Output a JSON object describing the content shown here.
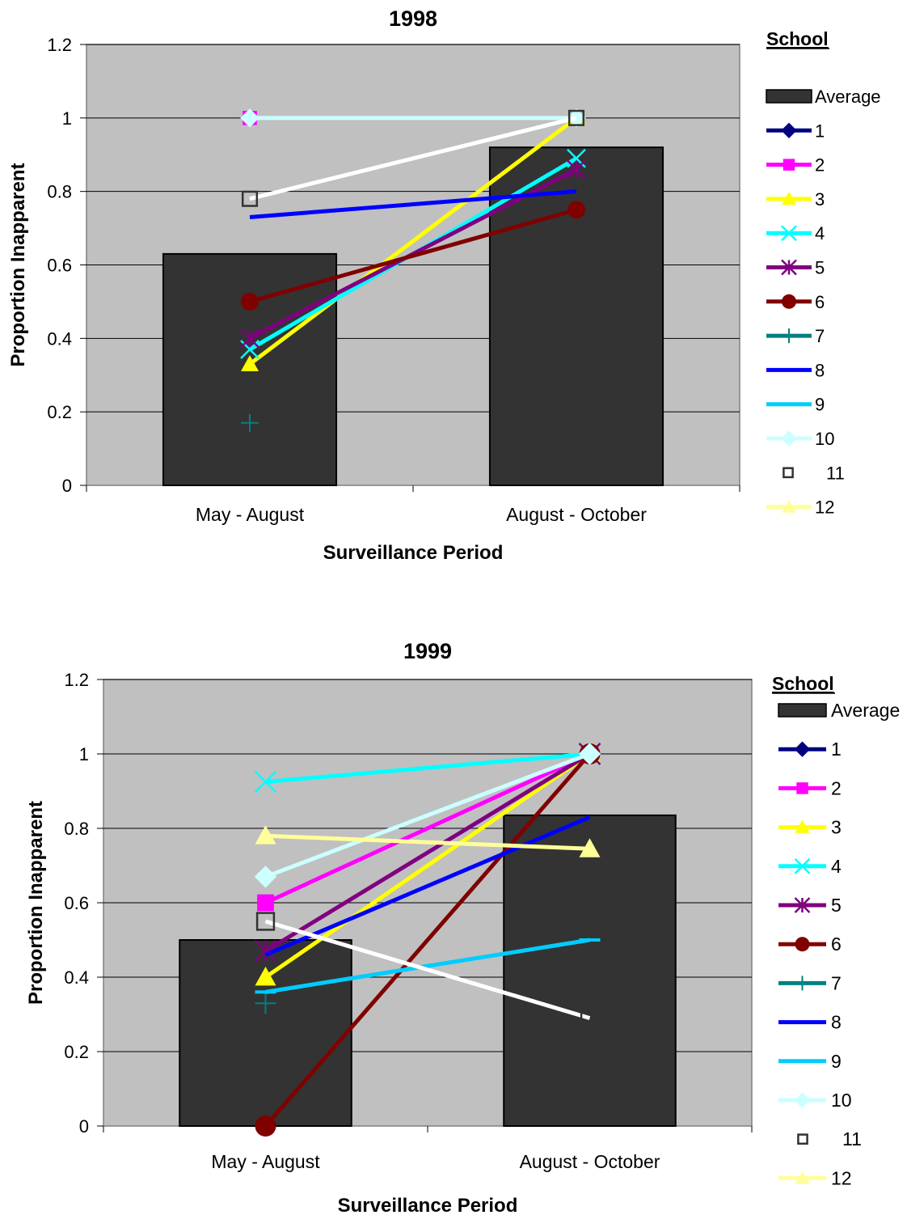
{
  "legend_heading": "School",
  "chart_data": [
    {
      "type": "bar",
      "title": "1998",
      "xlabel": "Surveillance Period",
      "ylabel": "Proportion Inapparent",
      "ylim": [
        0,
        1.2
      ],
      "yticks": [
        "0",
        "0.2",
        "0.4",
        "0.6",
        "0.8",
        "1",
        "1.2"
      ],
      "categories": [
        "May - August",
        "August - October"
      ],
      "grid": true,
      "legend_position": "right",
      "bar_series": {
        "name": "Average",
        "values": [
          0.63,
          0.92
        ],
        "color": "#333333"
      },
      "series": [
        {
          "name": "1",
          "values": [
            null,
            null
          ],
          "color": "#000080",
          "marker": "diamond"
        },
        {
          "name": "2",
          "values": [
            1.0,
            null
          ],
          "color": "#ff00ff",
          "marker": "square"
        },
        {
          "name": "3",
          "values": [
            0.33,
            1.0
          ],
          "color": "#ffff00",
          "marker": "triangle"
        },
        {
          "name": "4",
          "values": [
            0.37,
            0.89
          ],
          "color": "#00ffff",
          "marker": "x"
        },
        {
          "name": "5",
          "values": [
            0.4,
            0.86
          ],
          "color": "#800080",
          "marker": "star"
        },
        {
          "name": "6",
          "values": [
            0.5,
            0.75
          ],
          "color": "#800000",
          "marker": "circle"
        },
        {
          "name": "7",
          "values": [
            0.17,
            null
          ],
          "color": "#008080",
          "marker": "plus"
        },
        {
          "name": "8",
          "values": [
            0.73,
            0.8
          ],
          "color": "#0000ff",
          "marker": "none"
        },
        {
          "name": "9",
          "values": [
            null,
            null
          ],
          "color": "#00ccff",
          "marker": "dash"
        },
        {
          "name": "10",
          "values": [
            1.0,
            1.0
          ],
          "color": "#ccffff",
          "marker": "diamond"
        },
        {
          "name": "11",
          "values": [
            0.78,
            1.0
          ],
          "color": "#ffffff",
          "marker": "hollow-square"
        },
        {
          "name": "12",
          "values": [
            null,
            null
          ],
          "color": "#ffff99",
          "marker": "triangle"
        }
      ]
    },
    {
      "type": "bar",
      "title": "1999",
      "xlabel": "Surveillance Period",
      "ylabel": "Proportion Inapparent",
      "ylim": [
        0,
        1.2
      ],
      "yticks": [
        "0",
        "0.2",
        "0.4",
        "0.6",
        "0.8",
        "1",
        "1.2"
      ],
      "categories": [
        "May - August",
        "August - October"
      ],
      "grid": true,
      "legend_position": "right",
      "bar_series": {
        "name": "Average",
        "values": [
          0.5,
          0.835
        ],
        "color": "#333333"
      },
      "series": [
        {
          "name": "1",
          "values": [
            null,
            1.0
          ],
          "color": "#000080",
          "marker": "diamond"
        },
        {
          "name": "2",
          "values": [
            0.6,
            1.0
          ],
          "color": "#ff00ff",
          "marker": "square"
        },
        {
          "name": "3",
          "values": [
            0.4,
            1.0
          ],
          "color": "#ffff00",
          "marker": "triangle"
        },
        {
          "name": "4",
          "values": [
            0.925,
            1.0
          ],
          "color": "#00ffff",
          "marker": "x"
        },
        {
          "name": "5",
          "values": [
            0.47,
            1.0
          ],
          "color": "#800080",
          "marker": "star"
        },
        {
          "name": "6",
          "values": [
            0.0,
            1.0
          ],
          "color": "#800000",
          "marker": "circle"
        },
        {
          "name": "7",
          "values": [
            0.33,
            null
          ],
          "color": "#008080",
          "marker": "plus"
        },
        {
          "name": "8",
          "values": [
            0.46,
            0.83
          ],
          "color": "#0000ff",
          "marker": "none"
        },
        {
          "name": "9",
          "values": [
            0.36,
            0.5
          ],
          "color": "#00ccff",
          "marker": "dash"
        },
        {
          "name": "10",
          "values": [
            0.67,
            1.0
          ],
          "color": "#ccffff",
          "marker": "diamond"
        },
        {
          "name": "11",
          "values": [
            0.55,
            0.29
          ],
          "color": "#ffffff",
          "marker": "hollow-square"
        },
        {
          "name": "12",
          "values": [
            0.78,
            0.745
          ],
          "color": "#ffff99",
          "marker": "triangle"
        }
      ]
    }
  ]
}
